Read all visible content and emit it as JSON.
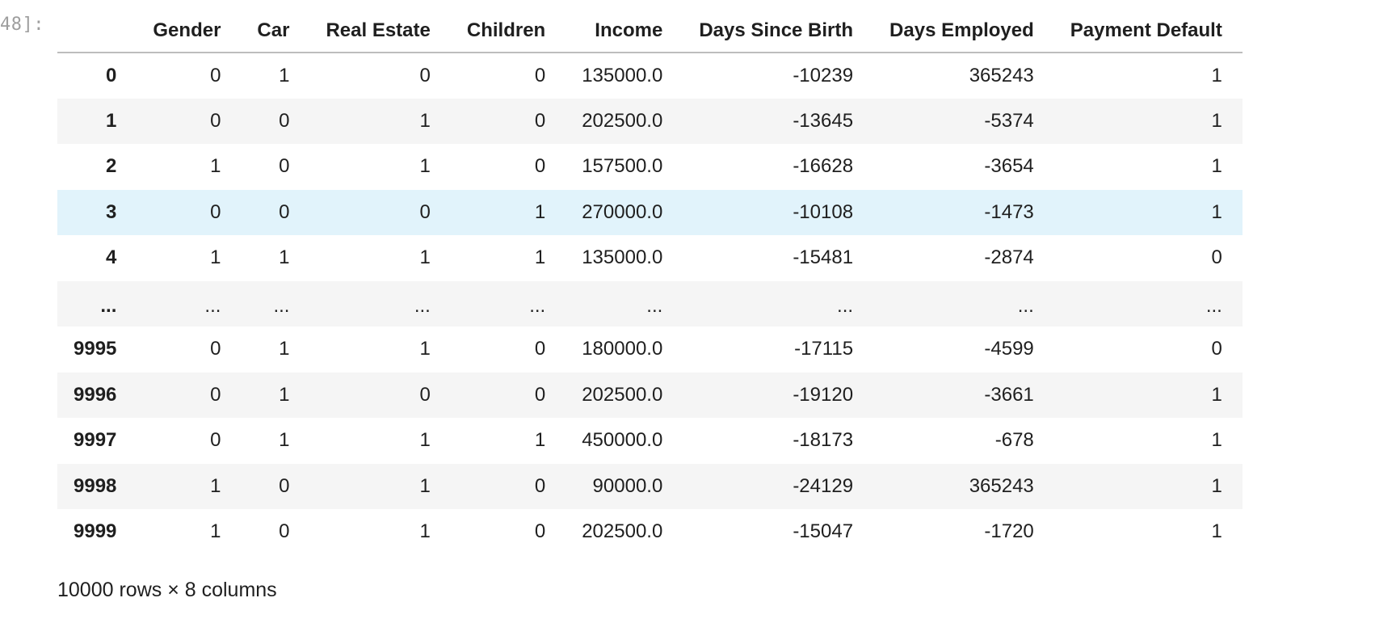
{
  "cell": {
    "prompt": "48]:"
  },
  "table": {
    "columns": [
      "Gender",
      "Car",
      "Real Estate",
      "Children",
      "Income",
      "Days Since Birth",
      "Days Employed",
      "Payment Default"
    ],
    "rows": [
      {
        "index": "0",
        "values": [
          "0",
          "1",
          "0",
          "0",
          "135000.0",
          "-10239",
          "365243",
          "1"
        ]
      },
      {
        "index": "1",
        "values": [
          "0",
          "0",
          "1",
          "0",
          "202500.0",
          "-13645",
          "-5374",
          "1"
        ]
      },
      {
        "index": "2",
        "values": [
          "1",
          "0",
          "1",
          "0",
          "157500.0",
          "-16628",
          "-3654",
          "1"
        ]
      },
      {
        "index": "3",
        "values": [
          "0",
          "0",
          "0",
          "1",
          "270000.0",
          "-10108",
          "-1473",
          "1"
        ]
      },
      {
        "index": "4",
        "values": [
          "1",
          "1",
          "1",
          "1",
          "135000.0",
          "-15481",
          "-2874",
          "0"
        ]
      },
      {
        "index": "...",
        "values": [
          "...",
          "...",
          "...",
          "...",
          "...",
          "...",
          "...",
          "..."
        ]
      },
      {
        "index": "9995",
        "values": [
          "0",
          "1",
          "1",
          "0",
          "180000.0",
          "-17115",
          "-4599",
          "0"
        ]
      },
      {
        "index": "9996",
        "values": [
          "0",
          "1",
          "0",
          "0",
          "202500.0",
          "-19120",
          "-3661",
          "1"
        ]
      },
      {
        "index": "9997",
        "values": [
          "0",
          "1",
          "1",
          "1",
          "450000.0",
          "-18173",
          "-678",
          "1"
        ]
      },
      {
        "index": "9998",
        "values": [
          "1",
          "0",
          "1",
          "0",
          "90000.0",
          "-24129",
          "365243",
          "1"
        ]
      },
      {
        "index": "9999",
        "values": [
          "1",
          "0",
          "1",
          "0",
          "202500.0",
          "-15047",
          "-1720",
          "1"
        ]
      }
    ],
    "highlighted_row": 3
  },
  "summary": "10000 rows × 8 columns",
  "colors": {
    "header_border": "#bdbdbd",
    "striped_row": "#f5f5f5",
    "hover_row": "#e1f3fb",
    "prompt_text": "#9e9e9e"
  }
}
